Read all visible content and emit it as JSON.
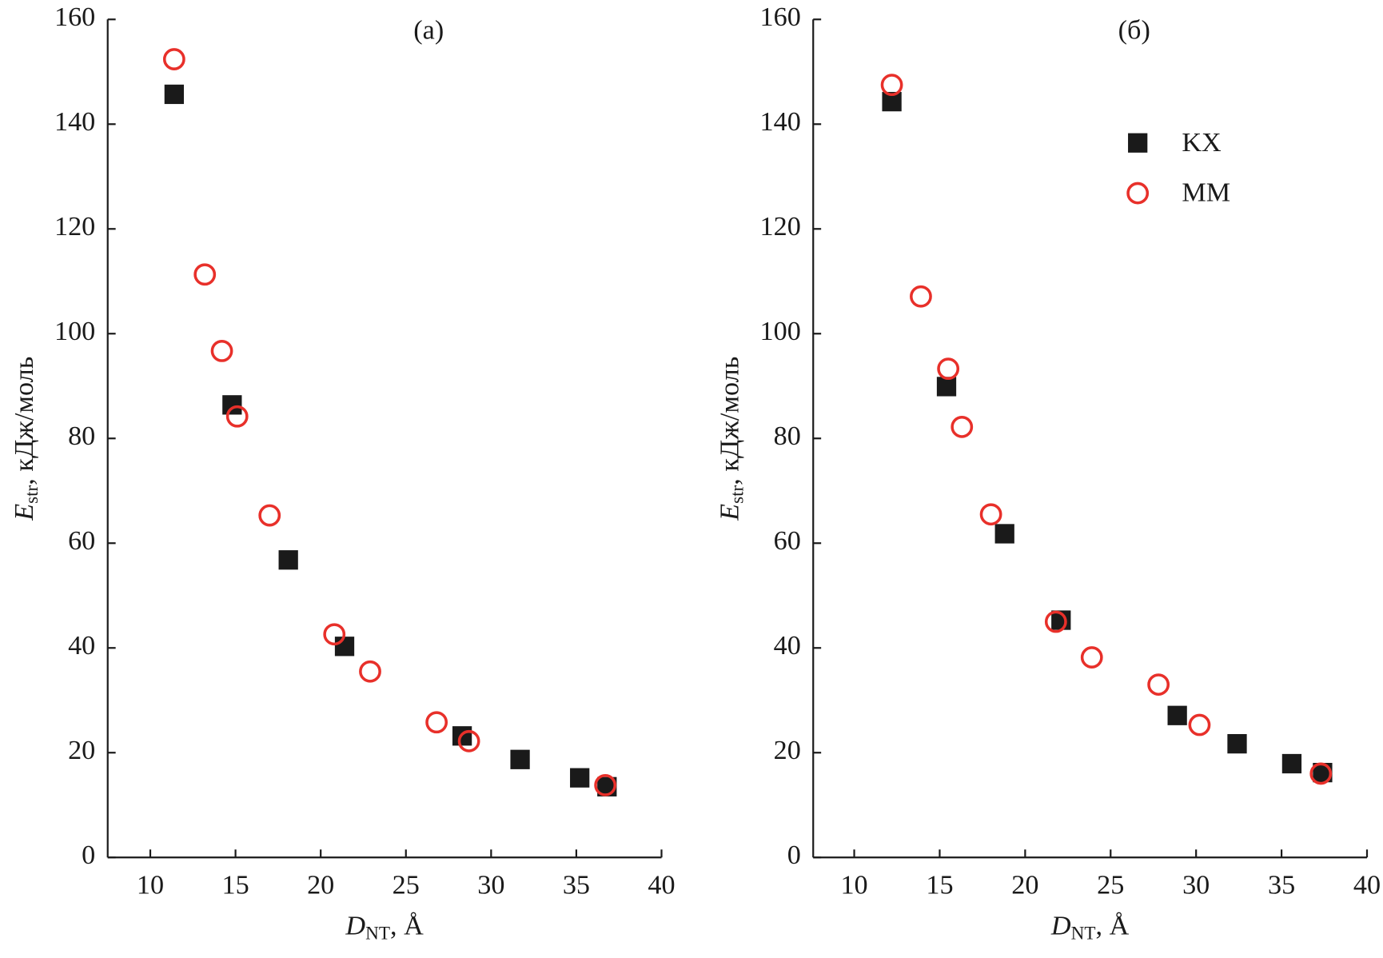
{
  "chart_data": [
    {
      "type": "scatter",
      "title": "(a)",
      "xlabel": {
        "main": "D",
        "sub": "NT",
        "rest": ", Å"
      },
      "ylabel": {
        "main": "E",
        "sub": "str",
        "rest": ", кДж/моль"
      },
      "xlim": [
        7.5,
        40
      ],
      "ylim": [
        0,
        160
      ],
      "xticks": [
        10,
        15,
        20,
        25,
        30,
        35,
        40
      ],
      "yticks": [
        0,
        20,
        40,
        60,
        80,
        100,
        120,
        140,
        160
      ],
      "series": [
        {
          "name": "KX",
          "color": "#1a1a1a",
          "marker": "square",
          "x": [
            11.4,
            14.8,
            18.1,
            21.4,
            28.3,
            31.7,
            35.2,
            36.8
          ],
          "values": [
            145.7,
            86.4,
            56.8,
            40.3,
            23.2,
            18.7,
            15.2,
            13.5
          ]
        },
        {
          "name": "MM",
          "color": "#e8302a",
          "marker": "circle",
          "x": [
            11.4,
            13.2,
            14.2,
            15.1,
            17.0,
            20.8,
            22.9,
            26.8,
            28.7,
            36.7
          ],
          "values": [
            152.4,
            111.3,
            96.7,
            84.2,
            65.3,
            42.6,
            35.5,
            25.8,
            22.2,
            13.8
          ]
        }
      ]
    },
    {
      "type": "scatter",
      "title": "(б)",
      "xlabel": {
        "main": "D",
        "sub": "NT",
        "rest": ", Å"
      },
      "ylabel": {
        "main": "E",
        "sub": "str",
        "rest": ", кДж/моль"
      },
      "xlim": [
        7.6,
        40
      ],
      "ylim": [
        0,
        160
      ],
      "xticks": [
        10,
        15,
        20,
        25,
        30,
        35,
        40
      ],
      "yticks": [
        0,
        20,
        40,
        60,
        80,
        100,
        120,
        140,
        160
      ],
      "legend": "upper right",
      "series": [
        {
          "name": "KX",
          "color": "#1a1a1a",
          "marker": "square",
          "x": [
            12.2,
            15.4,
            18.8,
            22.1,
            28.9,
            32.4,
            35.6,
            37.4
          ],
          "values": [
            144.3,
            89.9,
            61.8,
            45.3,
            27.1,
            21.7,
            17.9,
            16.2
          ]
        },
        {
          "name": "MM",
          "color": "#e8302a",
          "marker": "circle",
          "x": [
            12.2,
            13.9,
            15.5,
            16.3,
            18.0,
            21.8,
            23.9,
            27.8,
            30.2,
            37.3
          ],
          "values": [
            147.5,
            107.1,
            93.3,
            82.2,
            65.5,
            45.0,
            38.2,
            33.0,
            25.3,
            16.0
          ]
        }
      ]
    }
  ]
}
